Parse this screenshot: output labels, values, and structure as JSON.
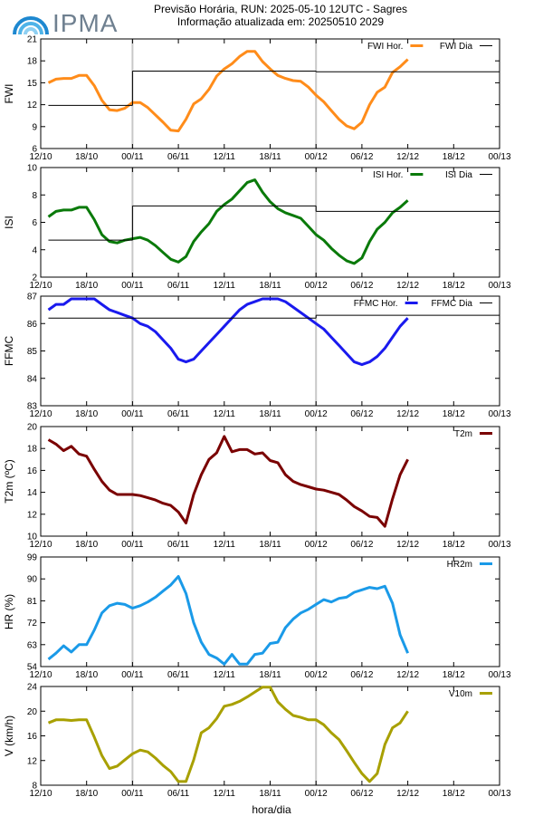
{
  "header": {
    "logo_text": "IPMA",
    "title_line1": "Previsão Horária, RUN: 2025-05-10 12UTC - Sagres",
    "title_line2": "Informação atualizada em: 20250510 2029"
  },
  "x_axis": {
    "label": "hora/dia",
    "tick_labels": [
      "12/10",
      "18/10",
      "00/11",
      "06/11",
      "12/11",
      "18/11",
      "00/12",
      "06/12",
      "12/12",
      "18/12",
      "00/13"
    ]
  },
  "chart_data": [
    {
      "type": "line",
      "panel": "fwi",
      "ylabel": "FWI",
      "ylim": [
        6,
        21
      ],
      "yticks": [
        6,
        9,
        12,
        15,
        18,
        21
      ],
      "legend": "top-right",
      "series": [
        {
          "name": "FWI Hor.",
          "color": "#ff8c1a",
          "style": "line",
          "x": [
            13,
            14,
            15,
            16,
            17,
            18,
            19,
            20,
            21,
            22,
            23,
            24,
            25,
            26,
            27,
            28,
            29,
            30,
            31,
            32,
            33,
            34,
            35,
            36,
            37,
            38,
            39,
            40,
            41,
            42,
            43,
            44,
            45,
            46,
            47,
            48,
            49,
            50,
            51,
            52,
            53,
            54,
            55,
            56,
            57,
            58,
            59,
            60
          ],
          "values": [
            15.0,
            15.5,
            15.6,
            15.6,
            16.0,
            16.0,
            14.6,
            12.6,
            11.3,
            11.2,
            11.5,
            12.3,
            12.3,
            11.6,
            10.6,
            9.6,
            8.5,
            8.4,
            10.0,
            12.1,
            12.8,
            14.1,
            15.9,
            16.9,
            17.6,
            18.6,
            19.3,
            19.3,
            17.9,
            16.9,
            16.0,
            15.6,
            15.3,
            15.2,
            14.4,
            13.3,
            12.4,
            11.2,
            10.0,
            9.1,
            8.7,
            9.6,
            12.0,
            13.7,
            14.4,
            16.4,
            17.2,
            18.2
          ]
        },
        {
          "name": "FWI Dia",
          "color": "#000000",
          "style": "step",
          "segments": [
            {
              "x0": 13,
              "x1": 24,
              "y": 11.9
            },
            {
              "x0": 24,
              "x1": 48,
              "y": 16.6
            },
            {
              "x0": 48,
              "x1": 72,
              "y": 16.5
            }
          ]
        }
      ]
    },
    {
      "type": "line",
      "panel": "isi",
      "ylabel": "ISI",
      "ylim": [
        2,
        10
      ],
      "yticks": [
        2,
        4,
        6,
        8,
        10
      ],
      "legend": "top-right",
      "series": [
        {
          "name": "ISI Hor.",
          "color": "#0a7a0a",
          "style": "line",
          "x": [
            13,
            14,
            15,
            16,
            17,
            18,
            19,
            20,
            21,
            22,
            23,
            24,
            25,
            26,
            27,
            28,
            29,
            30,
            31,
            32,
            33,
            34,
            35,
            36,
            37,
            38,
            39,
            40,
            41,
            42,
            43,
            44,
            45,
            46,
            47,
            48,
            49,
            50,
            51,
            52,
            53,
            54,
            55,
            56,
            57,
            58,
            59,
            60
          ],
          "values": [
            6.4,
            6.8,
            6.9,
            6.9,
            7.1,
            7.1,
            6.2,
            5.1,
            4.6,
            4.5,
            4.7,
            4.8,
            4.9,
            4.7,
            4.3,
            3.8,
            3.3,
            3.1,
            3.5,
            4.6,
            5.3,
            5.9,
            6.8,
            7.3,
            7.7,
            8.3,
            8.9,
            9.1,
            8.2,
            7.5,
            7.0,
            6.7,
            6.5,
            6.3,
            5.7,
            5.1,
            4.7,
            4.1,
            3.6,
            3.2,
            3.0,
            3.4,
            4.6,
            5.5,
            6.0,
            6.7,
            7.1,
            7.6
          ]
        },
        {
          "name": "ISI Dia",
          "color": "#000000",
          "style": "step",
          "segments": [
            {
              "x0": 13,
              "x1": 24,
              "y": 4.7
            },
            {
              "x0": 24,
              "x1": 48,
              "y": 7.2
            },
            {
              "x0": 48,
              "x1": 72,
              "y": 6.8
            }
          ]
        }
      ]
    },
    {
      "type": "line",
      "panel": "ffmc",
      "ylabel": "FFMC",
      "ylim": [
        83,
        87
      ],
      "yticks": [
        83,
        84,
        85,
        86,
        87
      ],
      "legend": "top-right",
      "series": [
        {
          "name": "FFMC Hor.",
          "color": "#1a1aee",
          "style": "line",
          "x": [
            13,
            14,
            15,
            16,
            17,
            18,
            19,
            20,
            21,
            22,
            23,
            24,
            25,
            26,
            27,
            28,
            29,
            30,
            31,
            32,
            33,
            34,
            35,
            36,
            37,
            38,
            39,
            40,
            41,
            42,
            43,
            44,
            45,
            46,
            47,
            48,
            49,
            50,
            51,
            52,
            53,
            54,
            55,
            56,
            57,
            58,
            59,
            60
          ],
          "values": [
            86.5,
            86.7,
            86.7,
            86.9,
            86.9,
            86.9,
            86.9,
            86.7,
            86.5,
            86.4,
            86.3,
            86.2,
            86.0,
            85.9,
            85.7,
            85.4,
            85.1,
            84.7,
            84.6,
            84.7,
            85.0,
            85.3,
            85.6,
            85.9,
            86.2,
            86.5,
            86.7,
            86.8,
            86.9,
            86.9,
            86.9,
            86.8,
            86.6,
            86.4,
            86.2,
            86.0,
            85.8,
            85.5,
            85.2,
            84.9,
            84.6,
            84.5,
            84.6,
            84.8,
            85.1,
            85.5,
            85.9,
            86.2
          ]
        },
        {
          "name": "FFMC Dia",
          "color": "#000000",
          "style": "step",
          "segments": [
            {
              "x0": 13,
              "x1": 48,
              "y": 86.2
            },
            {
              "x0": 48,
              "x1": 72,
              "y": 86.3
            }
          ]
        }
      ]
    },
    {
      "type": "line",
      "panel": "t2m",
      "ylabel": "T2m (ºC)",
      "ylim": [
        10,
        20
      ],
      "yticks": [
        10,
        12,
        14,
        16,
        18,
        20
      ],
      "legend": "top-right",
      "series": [
        {
          "name": "T2m",
          "color": "#7a0000",
          "style": "line",
          "x": [
            13,
            14,
            15,
            16,
            17,
            18,
            19,
            20,
            21,
            22,
            23,
            24,
            25,
            26,
            27,
            28,
            29,
            30,
            31,
            32,
            33,
            34,
            35,
            36,
            37,
            38,
            39,
            40,
            41,
            42,
            43,
            44,
            45,
            46,
            47,
            48,
            49,
            50,
            51,
            52,
            53,
            54,
            55,
            56,
            57,
            58,
            59,
            60
          ],
          "values": [
            18.8,
            18.4,
            17.8,
            18.2,
            17.5,
            17.3,
            16.1,
            15.0,
            14.2,
            13.8,
            13.8,
            13.8,
            13.7,
            13.5,
            13.3,
            13.0,
            12.8,
            12.2,
            11.2,
            13.8,
            15.6,
            17.0,
            17.6,
            19.1,
            17.7,
            17.9,
            17.9,
            17.5,
            17.6,
            16.9,
            16.7,
            15.6,
            15.0,
            14.7,
            14.5,
            14.3,
            14.2,
            14.0,
            13.8,
            13.3,
            12.7,
            12.3,
            11.8,
            11.7,
            10.9,
            13.4,
            15.6,
            17.0
          ]
        }
      ]
    },
    {
      "type": "line",
      "panel": "hr2m",
      "ylabel": "HR (%)",
      "ylim": [
        54,
        99
      ],
      "yticks": [
        54,
        63,
        72,
        81,
        90,
        99
      ],
      "legend": "top-right",
      "series": [
        {
          "name": "HR2m",
          "color": "#1a9ae8",
          "style": "line",
          "x": [
            13,
            14,
            15,
            16,
            17,
            18,
            19,
            20,
            21,
            22,
            23,
            24,
            25,
            26,
            27,
            28,
            29,
            30,
            31,
            32,
            33,
            34,
            35,
            36,
            37,
            38,
            39,
            40,
            41,
            42,
            43,
            44,
            45,
            46,
            47,
            48,
            49,
            50,
            51,
            52,
            53,
            54,
            55,
            56,
            57,
            58,
            59,
            60
          ],
          "values": [
            57.0,
            59.5,
            62.5,
            60.0,
            63.0,
            63.0,
            69.0,
            76.0,
            79.0,
            80.0,
            79.5,
            78.0,
            79.0,
            80.5,
            82.5,
            85.0,
            87.5,
            91.0,
            84.0,
            72.0,
            64.0,
            59.0,
            57.5,
            55.0,
            59.0,
            55.0,
            55.0,
            59.0,
            59.5,
            63.5,
            64.0,
            70.0,
            73.5,
            76.0,
            77.5,
            79.5,
            81.5,
            80.5,
            82.0,
            82.5,
            84.5,
            85.5,
            86.5,
            86.0,
            87.0,
            80.0,
            67.0,
            59.5
          ]
        }
      ]
    },
    {
      "type": "line",
      "panel": "v10m",
      "ylabel": "V (km/h)",
      "ylim": [
        8,
        24
      ],
      "yticks": [
        8,
        12,
        16,
        20,
        24
      ],
      "legend": "top-right",
      "series": [
        {
          "name": "V10m",
          "color": "#a8a000",
          "style": "line",
          "x": [
            13,
            14,
            15,
            16,
            17,
            18,
            19,
            20,
            21,
            22,
            23,
            24,
            25,
            26,
            27,
            28,
            29,
            30,
            31,
            32,
            33,
            34,
            35,
            36,
            37,
            38,
            39,
            40,
            41,
            42,
            43,
            44,
            45,
            46,
            47,
            48,
            49,
            50,
            51,
            52,
            53,
            54,
            55,
            56,
            57,
            58,
            59,
            60
          ],
          "values": [
            18.1,
            18.6,
            18.6,
            18.5,
            18.6,
            18.6,
            15.8,
            12.8,
            10.7,
            11.1,
            12.1,
            13.1,
            13.7,
            13.4,
            12.4,
            11.2,
            10.2,
            8.6,
            8.6,
            12.1,
            16.5,
            17.3,
            18.8,
            20.8,
            21.1,
            21.6,
            22.3,
            23.1,
            23.9,
            23.9,
            21.5,
            20.3,
            19.3,
            19.0,
            18.6,
            18.6,
            17.8,
            16.5,
            15.4,
            13.6,
            11.7,
            9.9,
            8.6,
            9.9,
            14.6,
            17.3,
            18.1,
            20.0
          ]
        }
      ]
    }
  ]
}
